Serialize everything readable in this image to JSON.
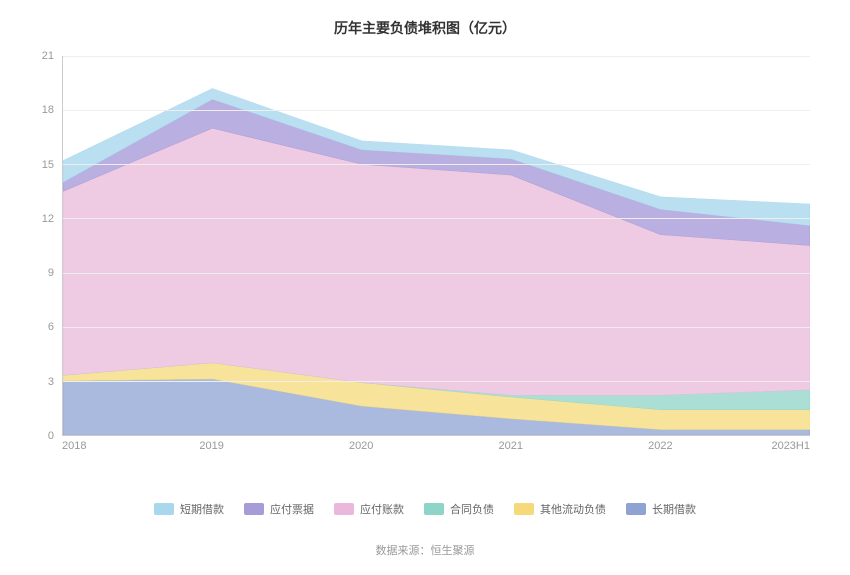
{
  "chart": {
    "type": "area-stacked",
    "title": "历年主要负债堆积图（亿元）",
    "title_fontsize": 14,
    "title_color": "#333333",
    "background_color": "#ffffff",
    "grid_color": "#eeeeee",
    "axis_color": "#cccccc",
    "tick_fontcolor": "#999999",
    "tick_fontsize": 11,
    "categories": [
      "2018",
      "2019",
      "2020",
      "2021",
      "2022",
      "2023H1"
    ],
    "ylim": [
      0,
      21
    ],
    "ytick_step": 3,
    "yticks": [
      0,
      3,
      6,
      9,
      12,
      15,
      18,
      21
    ],
    "series": [
      {
        "name": "长期借款",
        "color": "#8ea3d4",
        "opacity": 0.75,
        "values": [
          3.0,
          3.1,
          1.6,
          0.9,
          0.3,
          0.3
        ]
      },
      {
        "name": "其他流动负债",
        "color": "#f5d97a",
        "opacity": 0.75,
        "values": [
          0.3,
          0.9,
          1.3,
          1.2,
          1.1,
          1.1
        ]
      },
      {
        "name": "合同负债",
        "color": "#8fd4c8",
        "opacity": 0.75,
        "values": [
          0.0,
          0.0,
          0.0,
          0.1,
          0.8,
          1.1
        ]
      },
      {
        "name": "应付账款",
        "color": "#e9b8da",
        "opacity": 0.75,
        "values": [
          10.2,
          13.0,
          12.1,
          12.2,
          8.9,
          8.0
        ]
      },
      {
        "name": "应付票据",
        "color": "#a79bd8",
        "opacity": 0.8,
        "values": [
          0.5,
          1.6,
          0.8,
          0.9,
          1.4,
          1.1
        ]
      },
      {
        "name": "短期借款",
        "color": "#a9d7ee",
        "opacity": 0.8,
        "values": [
          1.2,
          0.6,
          0.5,
          0.5,
          0.7,
          1.2
        ]
      }
    ],
    "legend_order": [
      "短期借款",
      "应付票据",
      "应付账款",
      "合同负债",
      "其他流动负债",
      "长期借款"
    ],
    "legend_fontsize": 11,
    "legend_fontcolor": "#666666"
  },
  "source": {
    "label": "数据来源：恒生聚源"
  }
}
